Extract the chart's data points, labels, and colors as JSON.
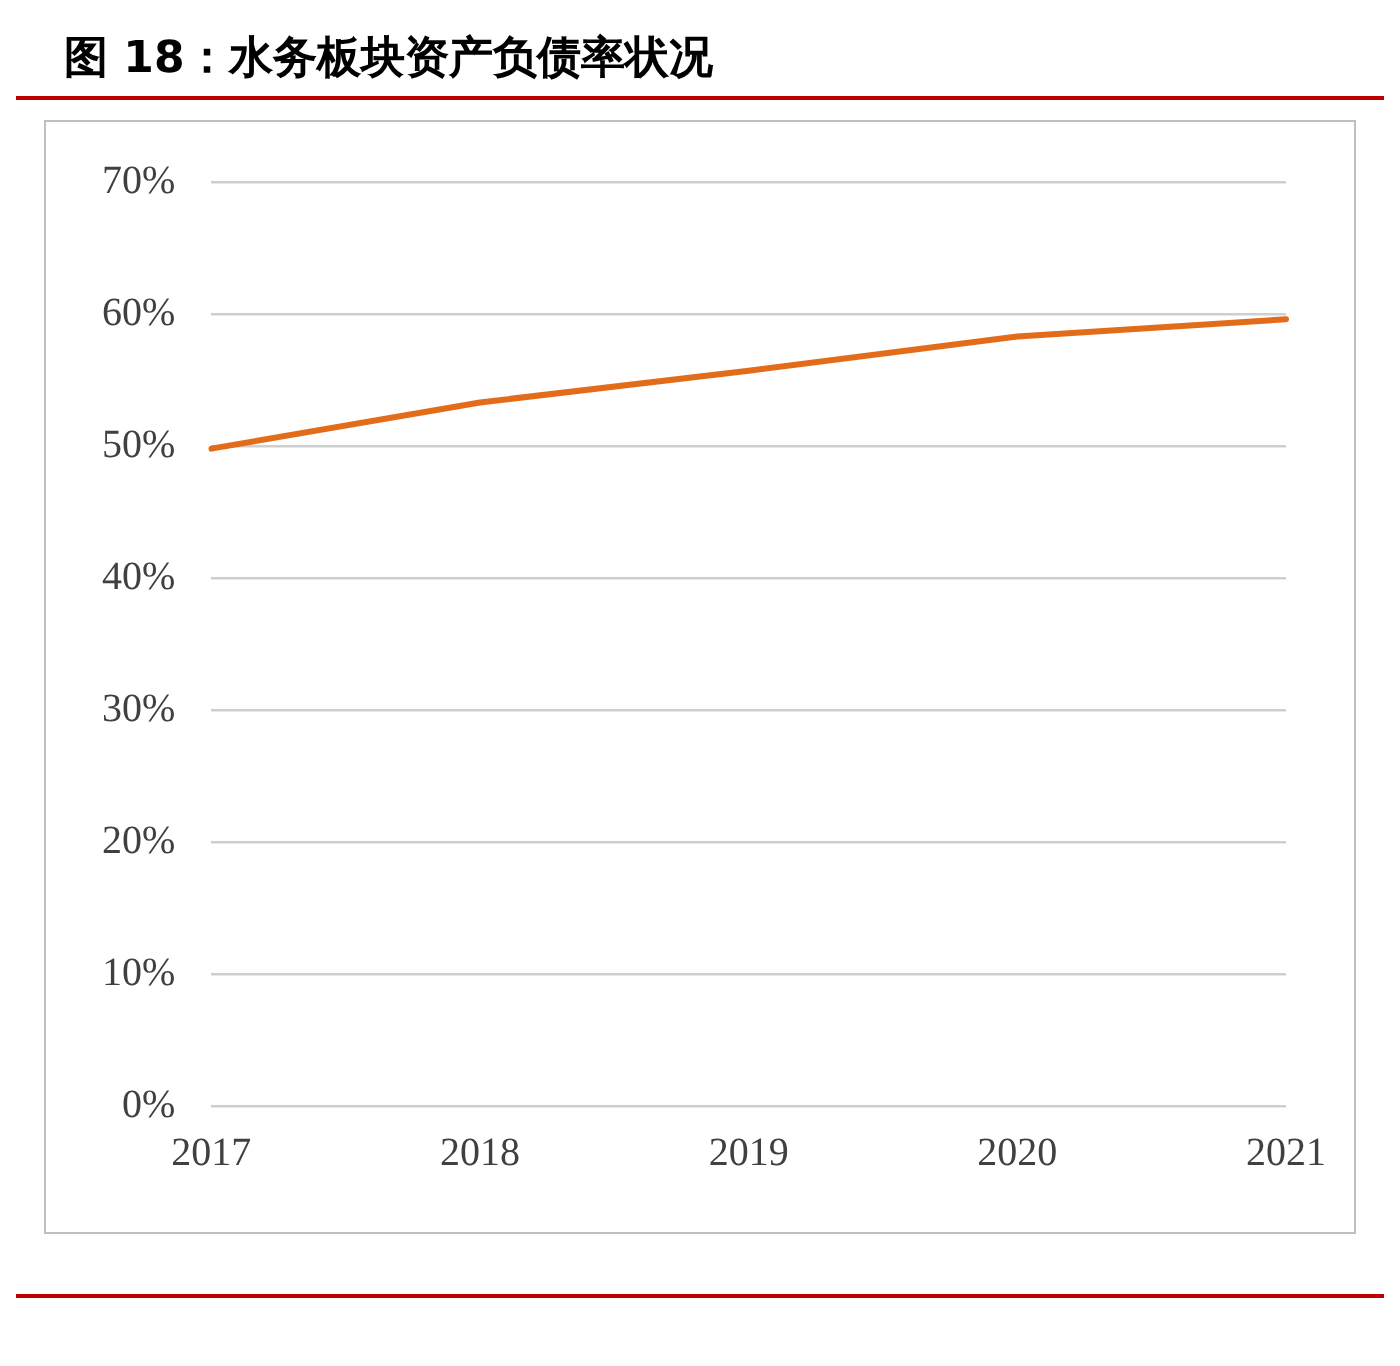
{
  "chart_data": {
    "type": "line",
    "title": "图 18：水务板块资产负债率状况",
    "categories": [
      "2017",
      "2018",
      "2019",
      "2020",
      "2021"
    ],
    "series": [
      {
        "color": "#e36c1b",
        "values": [
          49.8,
          53.3,
          55.7,
          58.3,
          59.6
        ]
      }
    ],
    "ylim": [
      0,
      70
    ],
    "yticks": [
      {
        "value": 0,
        "label": "0%"
      },
      {
        "value": 10,
        "label": "10%"
      },
      {
        "value": 20,
        "label": "20%"
      },
      {
        "value": 30,
        "label": "30%"
      },
      {
        "value": 40,
        "label": "40%"
      },
      {
        "value": 50,
        "label": "50%"
      },
      {
        "value": 60,
        "label": "60%"
      },
      {
        "value": 70,
        "label": "70%"
      }
    ],
    "grid": "y",
    "legend": false,
    "marker": "none",
    "line_style": "solid"
  }
}
